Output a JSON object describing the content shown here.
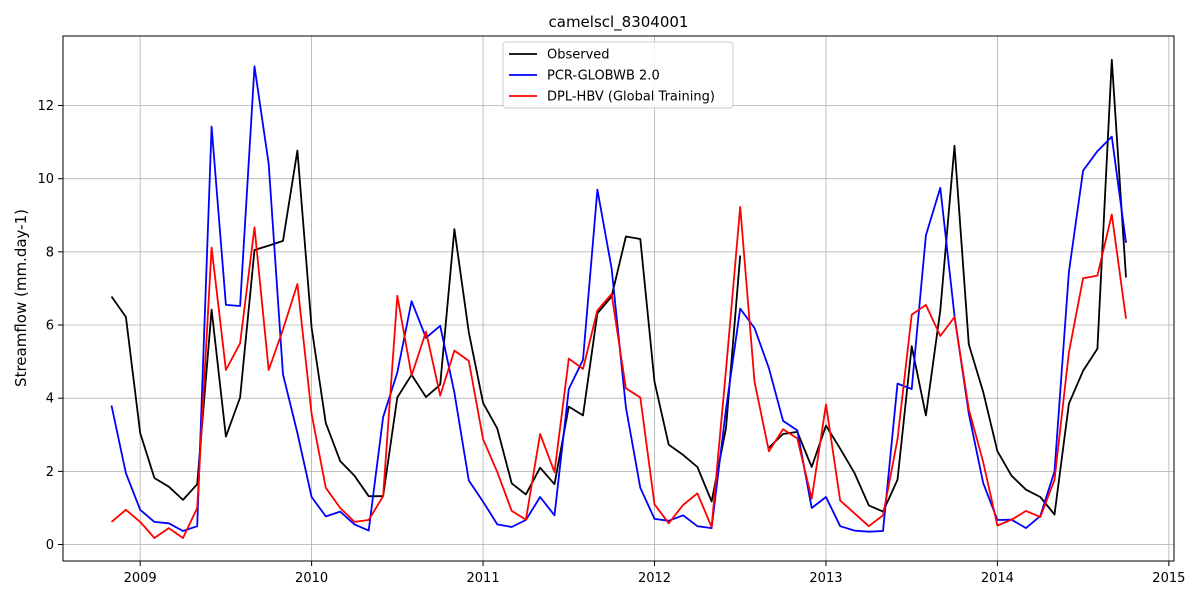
{
  "chart_data": {
    "type": "line",
    "title": "camelscl_8304001",
    "xlabel": "",
    "ylabel": "Streamflow (mm.day-1)",
    "xlim": [
      2008.55,
      2015.03
    ],
    "ylim": [
      -0.45,
      13.9
    ],
    "x_ticks": [
      2009,
      2010,
      2011,
      2012,
      2013,
      2014,
      2015
    ],
    "x_tick_labels": [
      "2009",
      "2010",
      "2011",
      "2012",
      "2013",
      "2014",
      "2015"
    ],
    "y_ticks": [
      0,
      2,
      4,
      6,
      8,
      10,
      12
    ],
    "y_tick_labels": [
      "0",
      "2",
      "4",
      "6",
      "8",
      "10",
      "12"
    ],
    "grid": true,
    "legend_position": "top-center",
    "x": [
      2008.833,
      2008.917,
      2009.0,
      2009.083,
      2009.167,
      2009.25,
      2009.333,
      2009.417,
      2009.5,
      2009.583,
      2009.667,
      2009.75,
      2009.833,
      2009.917,
      2010.0,
      2010.083,
      2010.167,
      2010.25,
      2010.333,
      2010.417,
      2010.5,
      2010.583,
      2010.667,
      2010.75,
      2010.833,
      2010.917,
      2011.0,
      2011.083,
      2011.167,
      2011.25,
      2011.333,
      2011.417,
      2011.5,
      2011.583,
      2011.667,
      2011.75,
      2011.833,
      2011.917,
      2012.0,
      2012.083,
      2012.167,
      2012.25,
      2012.333,
      2012.417,
      2012.5,
      2012.583,
      2012.667,
      2012.75,
      2012.833,
      2012.917,
      2013.0,
      2013.083,
      2013.167,
      2013.25,
      2013.333,
      2013.417,
      2013.5,
      2013.583,
      2013.667,
      2013.75,
      2013.833,
      2013.917,
      2014.0,
      2014.083,
      2014.167,
      2014.25,
      2014.333,
      2014.417,
      2014.5,
      2014.583,
      2014.667,
      2014.75
    ],
    "series": [
      {
        "name": "Observed",
        "color": "#000000",
        "values": [
          6.78,
          6.22,
          3.05,
          1.82,
          1.58,
          1.22,
          1.65,
          6.42,
          2.95,
          4.02,
          8.05,
          8.17,
          8.3,
          10.77,
          5.93,
          3.32,
          2.28,
          1.88,
          1.32,
          1.32,
          4.02,
          4.64,
          4.03,
          4.37,
          8.62,
          5.8,
          3.87,
          3.17,
          1.67,
          1.37,
          2.1,
          1.65,
          3.77,
          3.53,
          6.32,
          6.78,
          8.42,
          8.35,
          4.45,
          2.73,
          2.45,
          2.12,
          1.18,
          3.18,
          7.9,
          null,
          2.65,
          3.02,
          3.08,
          2.12,
          3.25,
          2.62,
          1.95,
          1.07,
          0.9,
          1.77,
          5.42,
          3.53,
          6.4,
          10.9,
          5.47,
          4.17,
          2.55,
          1.88,
          1.5,
          1.3,
          0.82,
          3.85,
          4.75,
          5.35,
          13.25,
          7.3
        ]
      },
      {
        "name": "PCR-GLOBWB 2.0",
        "color": "#0000ff",
        "values": [
          3.8,
          1.95,
          0.95,
          0.62,
          0.58,
          0.37,
          0.5,
          11.42,
          6.55,
          6.52,
          13.07,
          10.4,
          4.65,
          3.05,
          1.3,
          0.77,
          0.9,
          0.55,
          0.38,
          3.48,
          4.7,
          6.65,
          5.65,
          5.98,
          4.15,
          1.75,
          1.17,
          0.55,
          0.48,
          0.67,
          1.3,
          0.8,
          4.25,
          5.05,
          9.7,
          7.55,
          3.75,
          1.55,
          0.7,
          0.65,
          0.8,
          0.5,
          0.45,
          3.7,
          6.45,
          5.92,
          4.82,
          3.38,
          3.12,
          1.0,
          1.3,
          0.5,
          0.38,
          0.35,
          0.37,
          4.4,
          4.25,
          8.45,
          9.75,
          6.25,
          3.58,
          1.68,
          0.67,
          0.68,
          0.45,
          0.78,
          2.0,
          7.45,
          10.22,
          10.75,
          11.15,
          8.25
        ]
      },
      {
        "name": "DPL-HBV (Global Training)",
        "color": "#ff0000",
        "values": [
          0.62,
          0.95,
          0.62,
          0.18,
          0.45,
          0.18,
          1.0,
          8.12,
          4.77,
          5.5,
          8.67,
          4.77,
          5.88,
          7.12,
          3.57,
          1.55,
          1.0,
          0.62,
          0.67,
          1.32,
          6.8,
          4.62,
          5.82,
          4.07,
          5.3,
          5.02,
          2.88,
          1.98,
          0.92,
          0.68,
          3.02,
          1.98,
          5.08,
          4.8,
          6.4,
          6.85,
          4.27,
          4.02,
          1.1,
          0.58,
          1.08,
          1.4,
          0.48,
          4.77,
          9.23,
          4.45,
          2.55,
          3.15,
          2.9,
          1.25,
          3.83,
          1.2,
          0.85,
          0.5,
          0.8,
          2.88,
          6.28,
          6.55,
          5.7,
          6.22,
          3.7,
          2.25,
          0.52,
          0.68,
          0.92,
          0.75,
          1.77,
          5.25,
          7.28,
          7.35,
          9.02,
          6.17
        ]
      }
    ]
  }
}
